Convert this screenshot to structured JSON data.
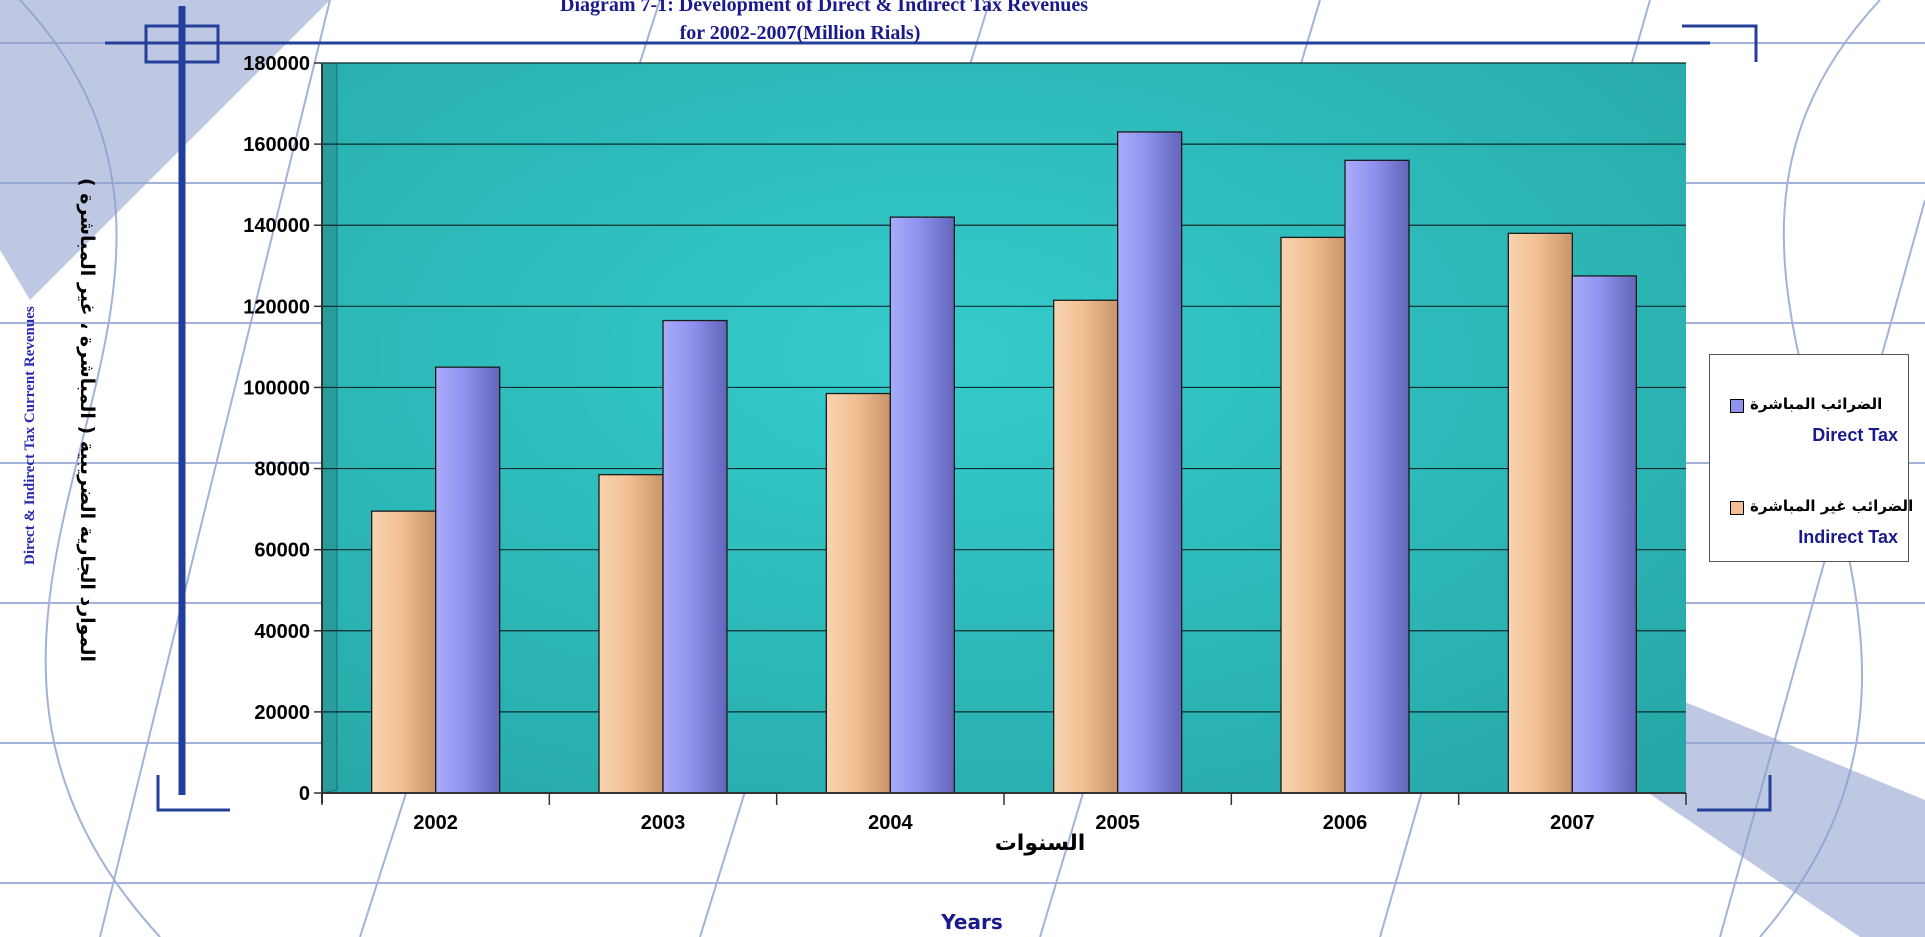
{
  "chart_data": {
    "type": "bar",
    "title": "Diagram 7-1: Development of Direct & Indirect Tax Revenues",
    "subtitle": "for 2002-2007(Million Rials)",
    "ylabel": "Direct & Indirect Tax Current Revenues",
    "ylabel_ar": "الموارد الجارية الضريبية ( المباشرة ، غير المباشرة )",
    "xlabel": "Years",
    "xlabel_ar": "السنوات",
    "categories": [
      "2002",
      "2003",
      "2004",
      "2005",
      "2006",
      "2007"
    ],
    "yticks": [
      "0",
      "20000",
      "40000",
      "60000",
      "80000",
      "100000",
      "120000",
      "140000",
      "160000",
      "180000"
    ],
    "ylim": [
      0,
      180000
    ],
    "grid": true,
    "legend_position": "right",
    "series": [
      {
        "name": "Indirect Tax",
        "name_ar": "الضرائب غير المباشرة",
        "color": "#f2c092",
        "values": [
          69500,
          78500,
          98500,
          121500,
          137000,
          138000
        ]
      },
      {
        "name": "Direct Tax",
        "name_ar": "الضرائب المباشرة",
        "color": "#8f92ee",
        "values": [
          105000,
          116500,
          142000,
          163000,
          156000,
          127500
        ]
      }
    ],
    "legend": [
      {
        "label_ar": "الضرائب المباشرة",
        "label": "Direct Tax",
        "color": "#8f92ee"
      },
      {
        "label_ar": "الضرائب غير المباشرة",
        "label": "Indirect Tax",
        "color": "#f2c092"
      }
    ]
  }
}
